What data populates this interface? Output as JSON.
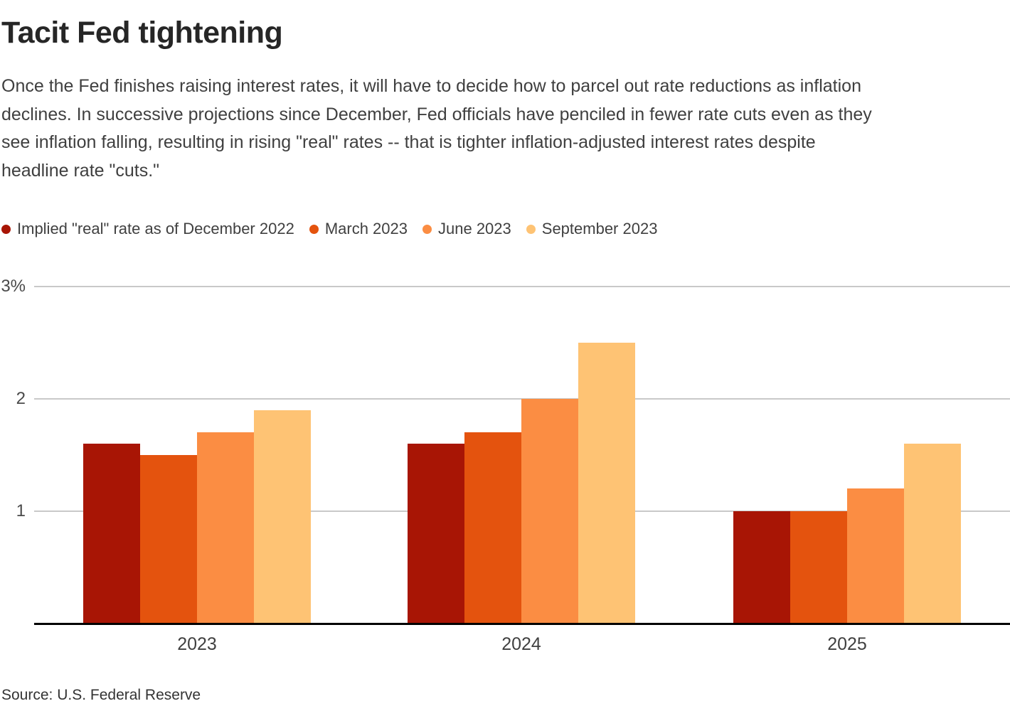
{
  "header": {
    "title": "Tacit Fed tightening",
    "description_lines": [
      "Once the Fed finishes raising interest rates, it will have to decide how to parcel out rate reductions as inflation",
      "declines. In successive projections since December, Fed officials have penciled in fewer rate cuts even as they",
      "see inflation falling, resulting in rising \"real\" rates -- that is tighter inflation-adjusted interest rates despite",
      "headline rate \"cuts.\""
    ]
  },
  "chart_data": {
    "type": "bar",
    "categories": [
      "2023",
      "2024",
      "2025"
    ],
    "series": [
      {
        "name": "Implied \"real\" rate as of December 2022",
        "color": "#a81505",
        "values": [
          1.6,
          1.6,
          1.0
        ]
      },
      {
        "name": "March 2023",
        "color": "#e4530e",
        "values": [
          1.5,
          1.7,
          1.0
        ]
      },
      {
        "name": "June 2023",
        "color": "#fb8d43",
        "values": [
          1.7,
          2.0,
          1.2
        ]
      },
      {
        "name": "September 2023",
        "color": "#fec374",
        "values": [
          1.9,
          2.5,
          1.6
        ]
      }
    ],
    "ylim": [
      0,
      3
    ],
    "yticks": [
      {
        "label": "3%",
        "value": 3
      },
      {
        "label": "2",
        "value": 2
      },
      {
        "label": "1",
        "value": 1
      }
    ],
    "grid": true,
    "legend_position": "top",
    "gridline_color": "#c9c9c9",
    "axis_line_color": "#000000"
  },
  "footer": {
    "source": "Source: U.S. Federal Reserve"
  }
}
